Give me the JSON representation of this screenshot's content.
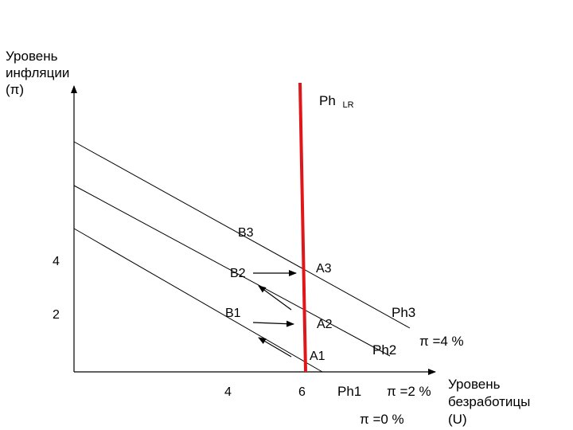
{
  "y_axis": {
    "title_lines": [
      "Уровень",
      "инфляции",
      "(π)"
    ],
    "ticks": [
      "4",
      "2"
    ]
  },
  "x_axis": {
    "title_lines": [
      "Уровень",
      "безработицы",
      "(U)"
    ],
    "ticks": [
      "4",
      "6"
    ]
  },
  "long_run_curve": {
    "label": "Ph",
    "subscript": "LR",
    "color": "#e0161b"
  },
  "short_run_curves": [
    "Ph1",
    "Ph2",
    "Ph3"
  ],
  "expectations": [
    "π =0 %",
    "π =2 %",
    "π =4 %"
  ],
  "points": [
    "B3",
    "B2",
    "B1",
    "A3",
    "A2",
    "A1"
  ],
  "line_color": "#000000"
}
